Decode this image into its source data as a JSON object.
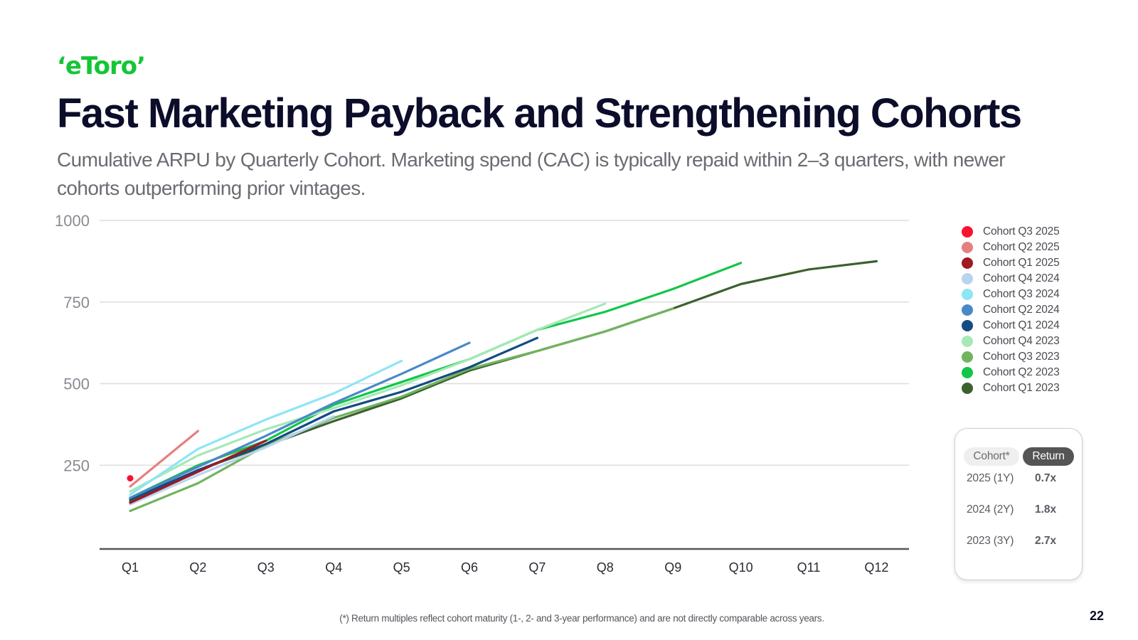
{
  "header": {
    "logo_text": "‘eToro’",
    "title": "Fast Marketing Payback and Strengthening Cohorts",
    "subtitle": "Cumulative ARPU by Quarterly Cohort. Marketing spend (CAC) is typically repaid within 2–3 quarters, with newer cohorts outperforming prior vintages."
  },
  "chart_data": {
    "type": "line",
    "categories": [
      "Q1",
      "Q2",
      "Q3",
      "Q4",
      "Q5",
      "Q6",
      "Q7",
      "Q8",
      "Q9",
      "Q10",
      "Q11",
      "Q12"
    ],
    "y_ticks": [
      250,
      500,
      750,
      1000
    ],
    "ylim": [
      0,
      1000
    ],
    "title": "",
    "xlabel": "",
    "ylabel": "",
    "grid": "horizontal",
    "legend": "right",
    "series": [
      {
        "name": "Cohort Q3 2025",
        "color": "#f7132f",
        "points": [
          [
            1,
            210
          ]
        ]
      },
      {
        "name": "Cohort Q2 2025",
        "color": "#e58080",
        "points": [
          [
            1,
            185
          ],
          [
            2,
            355
          ]
        ]
      },
      {
        "name": "Cohort Q1 2025",
        "color": "#a01820",
        "points": [
          [
            1,
            135
          ],
          [
            2,
            230
          ],
          [
            3,
            325
          ]
        ]
      },
      {
        "name": "Cohort Q4 2024",
        "color": "#b8d4ee",
        "points": [
          [
            1,
            130
          ],
          [
            2,
            220
          ],
          [
            3,
            305
          ],
          [
            4,
            400
          ]
        ]
      },
      {
        "name": "Cohort Q3 2024",
        "color": "#8ee5f5",
        "points": [
          [
            1,
            160
          ],
          [
            2,
            300
          ],
          [
            3,
            390
          ],
          [
            4,
            470
          ],
          [
            5,
            570
          ]
        ]
      },
      {
        "name": "Cohort Q2 2024",
        "color": "#4a89c8",
        "points": [
          [
            1,
            150
          ],
          [
            2,
            245
          ],
          [
            3,
            340
          ],
          [
            4,
            440
          ],
          [
            5,
            530
          ],
          [
            6,
            625
          ]
        ]
      },
      {
        "name": "Cohort Q1 2024",
        "color": "#134b82",
        "points": [
          [
            1,
            145
          ],
          [
            2,
            235
          ],
          [
            3,
            315
          ],
          [
            4,
            415
          ],
          [
            5,
            475
          ],
          [
            6,
            550
          ],
          [
            7,
            640
          ]
        ]
      },
      {
        "name": "Cohort Q4 2023",
        "color": "#a6e8b6",
        "points": [
          [
            1,
            170
          ],
          [
            2,
            280
          ],
          [
            3,
            360
          ],
          [
            4,
            425
          ],
          [
            5,
            495
          ],
          [
            6,
            575
          ],
          [
            7,
            665
          ],
          [
            8,
            745
          ]
        ]
      },
      {
        "name": "Cohort Q3 2023",
        "color": "#72b35f",
        "points": [
          [
            1,
            110
          ],
          [
            2,
            195
          ],
          [
            3,
            310
          ],
          [
            4,
            395
          ],
          [
            5,
            460
          ],
          [
            6,
            545
          ],
          [
            7,
            600
          ],
          [
            8,
            660
          ],
          [
            9,
            730
          ]
        ]
      },
      {
        "name": "Cohort Q2 2023",
        "color": "#12c64a",
        "points": [
          [
            1,
            150
          ],
          [
            2,
            250
          ],
          [
            3,
            325
          ],
          [
            4,
            435
          ],
          [
            5,
            505
          ],
          [
            6,
            575
          ],
          [
            7,
            665
          ],
          [
            8,
            720
          ],
          [
            9,
            790
          ],
          [
            10,
            870
          ]
        ]
      },
      {
        "name": "Cohort Q1 2023",
        "color": "#3c6130",
        "points": [
          [
            1,
            140
          ],
          [
            2,
            235
          ],
          [
            3,
            310
          ],
          [
            4,
            385
          ],
          [
            5,
            455
          ],
          [
            6,
            540
          ],
          [
            7,
            600
          ],
          [
            8,
            660
          ],
          [
            9,
            730
          ],
          [
            10,
            805
          ],
          [
            11,
            850
          ],
          [
            12,
            875
          ]
        ]
      }
    ]
  },
  "return_table": {
    "col_cohort": "Cohort*",
    "col_return": "Return",
    "rows": [
      {
        "cohort": "2025 (1Y)",
        "value": "0.7x"
      },
      {
        "cohort": "2024 (2Y)",
        "value": "1.8x"
      },
      {
        "cohort": "2023 (3Y)",
        "value": "2.7x"
      }
    ]
  },
  "footnote": "(*) Return multiples reflect cohort maturity (1-, 2- and 3-year performance) and are not directly comparable across years.",
  "page_number": "22"
}
